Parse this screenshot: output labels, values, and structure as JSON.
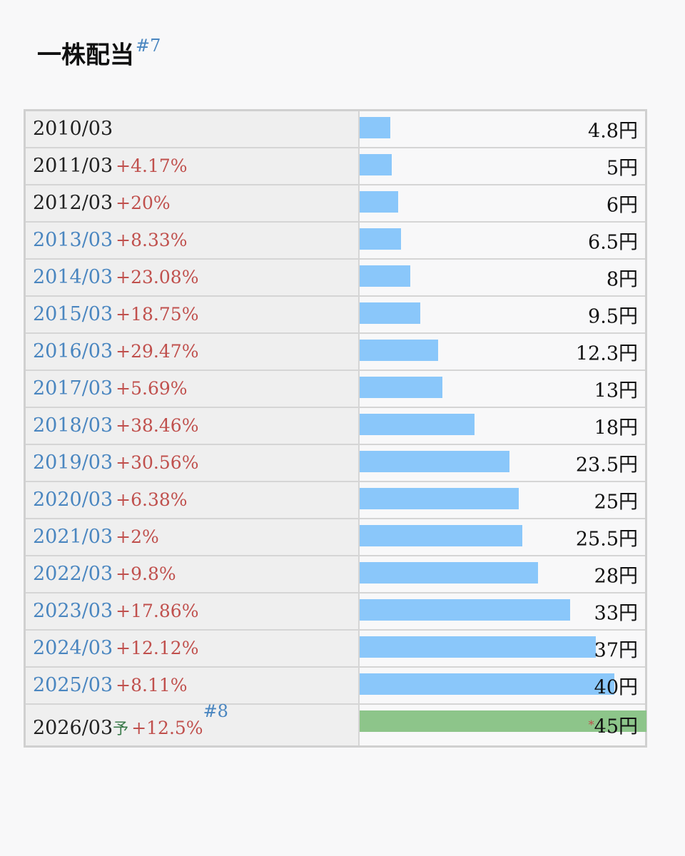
{
  "title": {
    "text": "一株配当",
    "note": "#7"
  },
  "colors": {
    "bar_actual": "#8ac7fa",
    "bar_forecast": "#8dc58a",
    "growth_text": "#c0504d",
    "link_text": "#4a86c0"
  },
  "forecast": {
    "mark": "予",
    "note": "#8",
    "star": "*"
  },
  "chart_data": {
    "type": "bar",
    "orientation": "horizontal",
    "unit": "円",
    "categories": [
      "2010/03",
      "2011/03",
      "2012/03",
      "2013/03",
      "2014/03",
      "2015/03",
      "2016/03",
      "2017/03",
      "2018/03",
      "2019/03",
      "2020/03",
      "2021/03",
      "2022/03",
      "2023/03",
      "2024/03",
      "2025/03",
      "2026/03"
    ],
    "values": [
      4.8,
      5,
      6,
      6.5,
      8,
      9.5,
      12.3,
      13,
      18,
      23.5,
      25,
      25.5,
      28,
      33,
      37,
      40,
      45
    ],
    "value_labels": [
      "4.8円",
      "5円",
      "6円",
      "6.5円",
      "8円",
      "9.5円",
      "12.3円",
      "13円",
      "18円",
      "23.5円",
      "25円",
      "25.5円",
      "28円",
      "33円",
      "37円",
      "40円",
      "45円"
    ],
    "growth": [
      "",
      "+4.17%",
      "+20%",
      "+8.33%",
      "+23.08%",
      "+18.75%",
      "+29.47%",
      "+5.69%",
      "+38.46%",
      "+30.56%",
      "+6.38%",
      "+2%",
      "+9.8%",
      "+17.86%",
      "+12.12%",
      "+8.11%",
      "+12.5%"
    ],
    "linked": [
      false,
      false,
      false,
      true,
      true,
      true,
      true,
      true,
      true,
      true,
      true,
      true,
      true,
      true,
      true,
      true,
      false
    ],
    "forecast_index": 16,
    "xlim": [
      0,
      45
    ]
  }
}
